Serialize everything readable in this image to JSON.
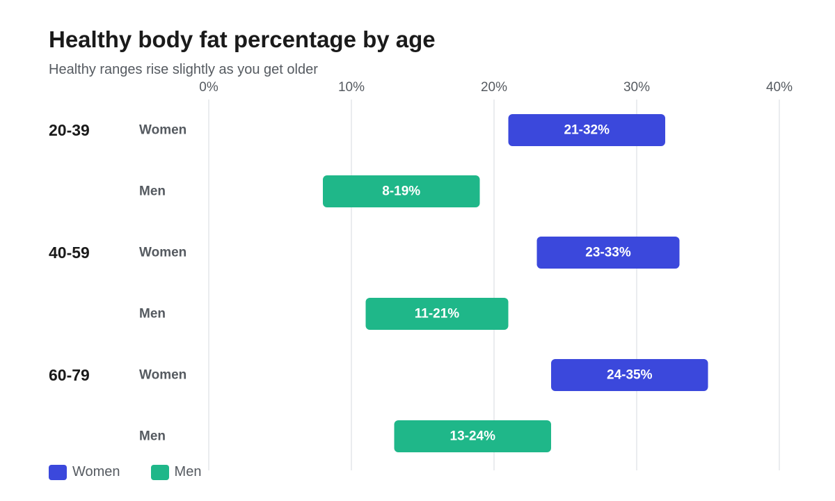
{
  "chart_data": {
    "type": "bar",
    "subtype": "floating-range-horizontal",
    "title": "Healthy body fat percentage by age",
    "subtitle": "Healthy ranges rise slightly as you get older",
    "x_axis": {
      "ticks": [
        0,
        10,
        20,
        30,
        40
      ],
      "tick_labels": [
        "0%",
        "10%",
        "20%",
        "30%",
        "40%"
      ],
      "range": [
        0,
        40
      ],
      "position": "top",
      "grid": true
    },
    "groups": [
      {
        "label": "20-39",
        "rows": [
          {
            "series": "Women",
            "label": "Women",
            "start": 21,
            "end": 32,
            "value_label": "21-32%"
          },
          {
            "series": "Men",
            "label": "Men",
            "start": 8,
            "end": 19,
            "value_label": "8-19%"
          }
        ]
      },
      {
        "label": "40-59",
        "rows": [
          {
            "series": "Women",
            "label": "Women",
            "start": 23,
            "end": 33,
            "value_label": "23-33%"
          },
          {
            "series": "Men",
            "label": "Men",
            "start": 11,
            "end": 21,
            "value_label": "11-21%"
          }
        ]
      },
      {
        "label": "60-79",
        "rows": [
          {
            "series": "Women",
            "label": "Women",
            "start": 24,
            "end": 35,
            "value_label": "24-35%"
          },
          {
            "series": "Men",
            "label": "Men",
            "start": 13,
            "end": 24,
            "value_label": "13-24%"
          }
        ]
      }
    ],
    "legend": {
      "placement": "bottom-left",
      "items": [
        {
          "name": "Women",
          "color": "#3b48dc"
        },
        {
          "name": "Men",
          "color": "#1fb789"
        }
      ]
    },
    "colors": {
      "Women": "#3b48dc",
      "Men": "#1fb789",
      "grid": "#e3e5ea"
    }
  }
}
